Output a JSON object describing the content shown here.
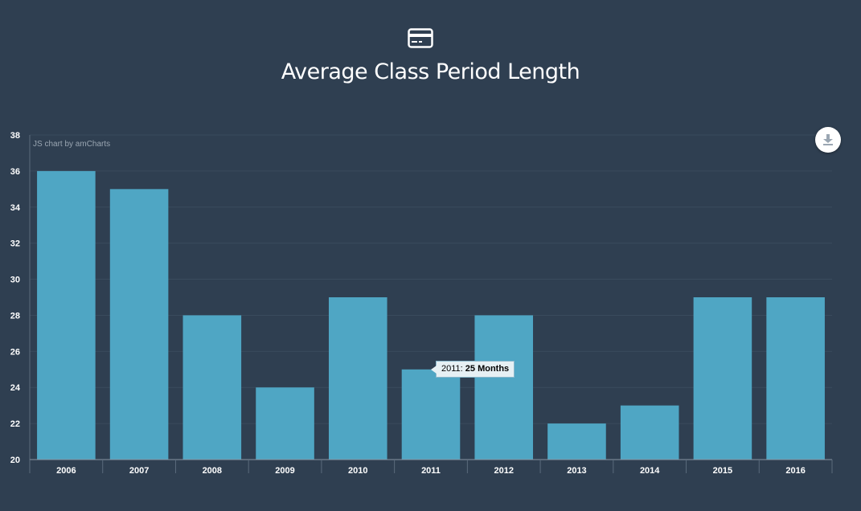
{
  "header": {
    "icon": "credit-card-icon",
    "title": "Average Class Period Length"
  },
  "credit": "JS chart by amCharts",
  "toolbar": {
    "download_icon": "download-icon"
  },
  "tooltip": {
    "category": "2011",
    "separator": ":",
    "value_text": "25 Months"
  },
  "colors": {
    "background": "#2f3f51",
    "bar": "#4fa6c4",
    "grid": "#3a4b5d",
    "axis_text": "#ffffff"
  },
  "chart_data": {
    "type": "bar",
    "categories": [
      "2006",
      "2007",
      "2008",
      "2009",
      "2010",
      "2011",
      "2012",
      "2013",
      "2014",
      "2015",
      "2016"
    ],
    "values": [
      36,
      35,
      28,
      24,
      29,
      25,
      28,
      22,
      23,
      29,
      29
    ],
    "title": "Average Class Period Length",
    "ylim": [
      20,
      38
    ],
    "yticks": [
      20,
      22,
      24,
      26,
      28,
      30,
      32,
      34,
      36,
      38
    ],
    "grid": true,
    "unit": "Months"
  }
}
